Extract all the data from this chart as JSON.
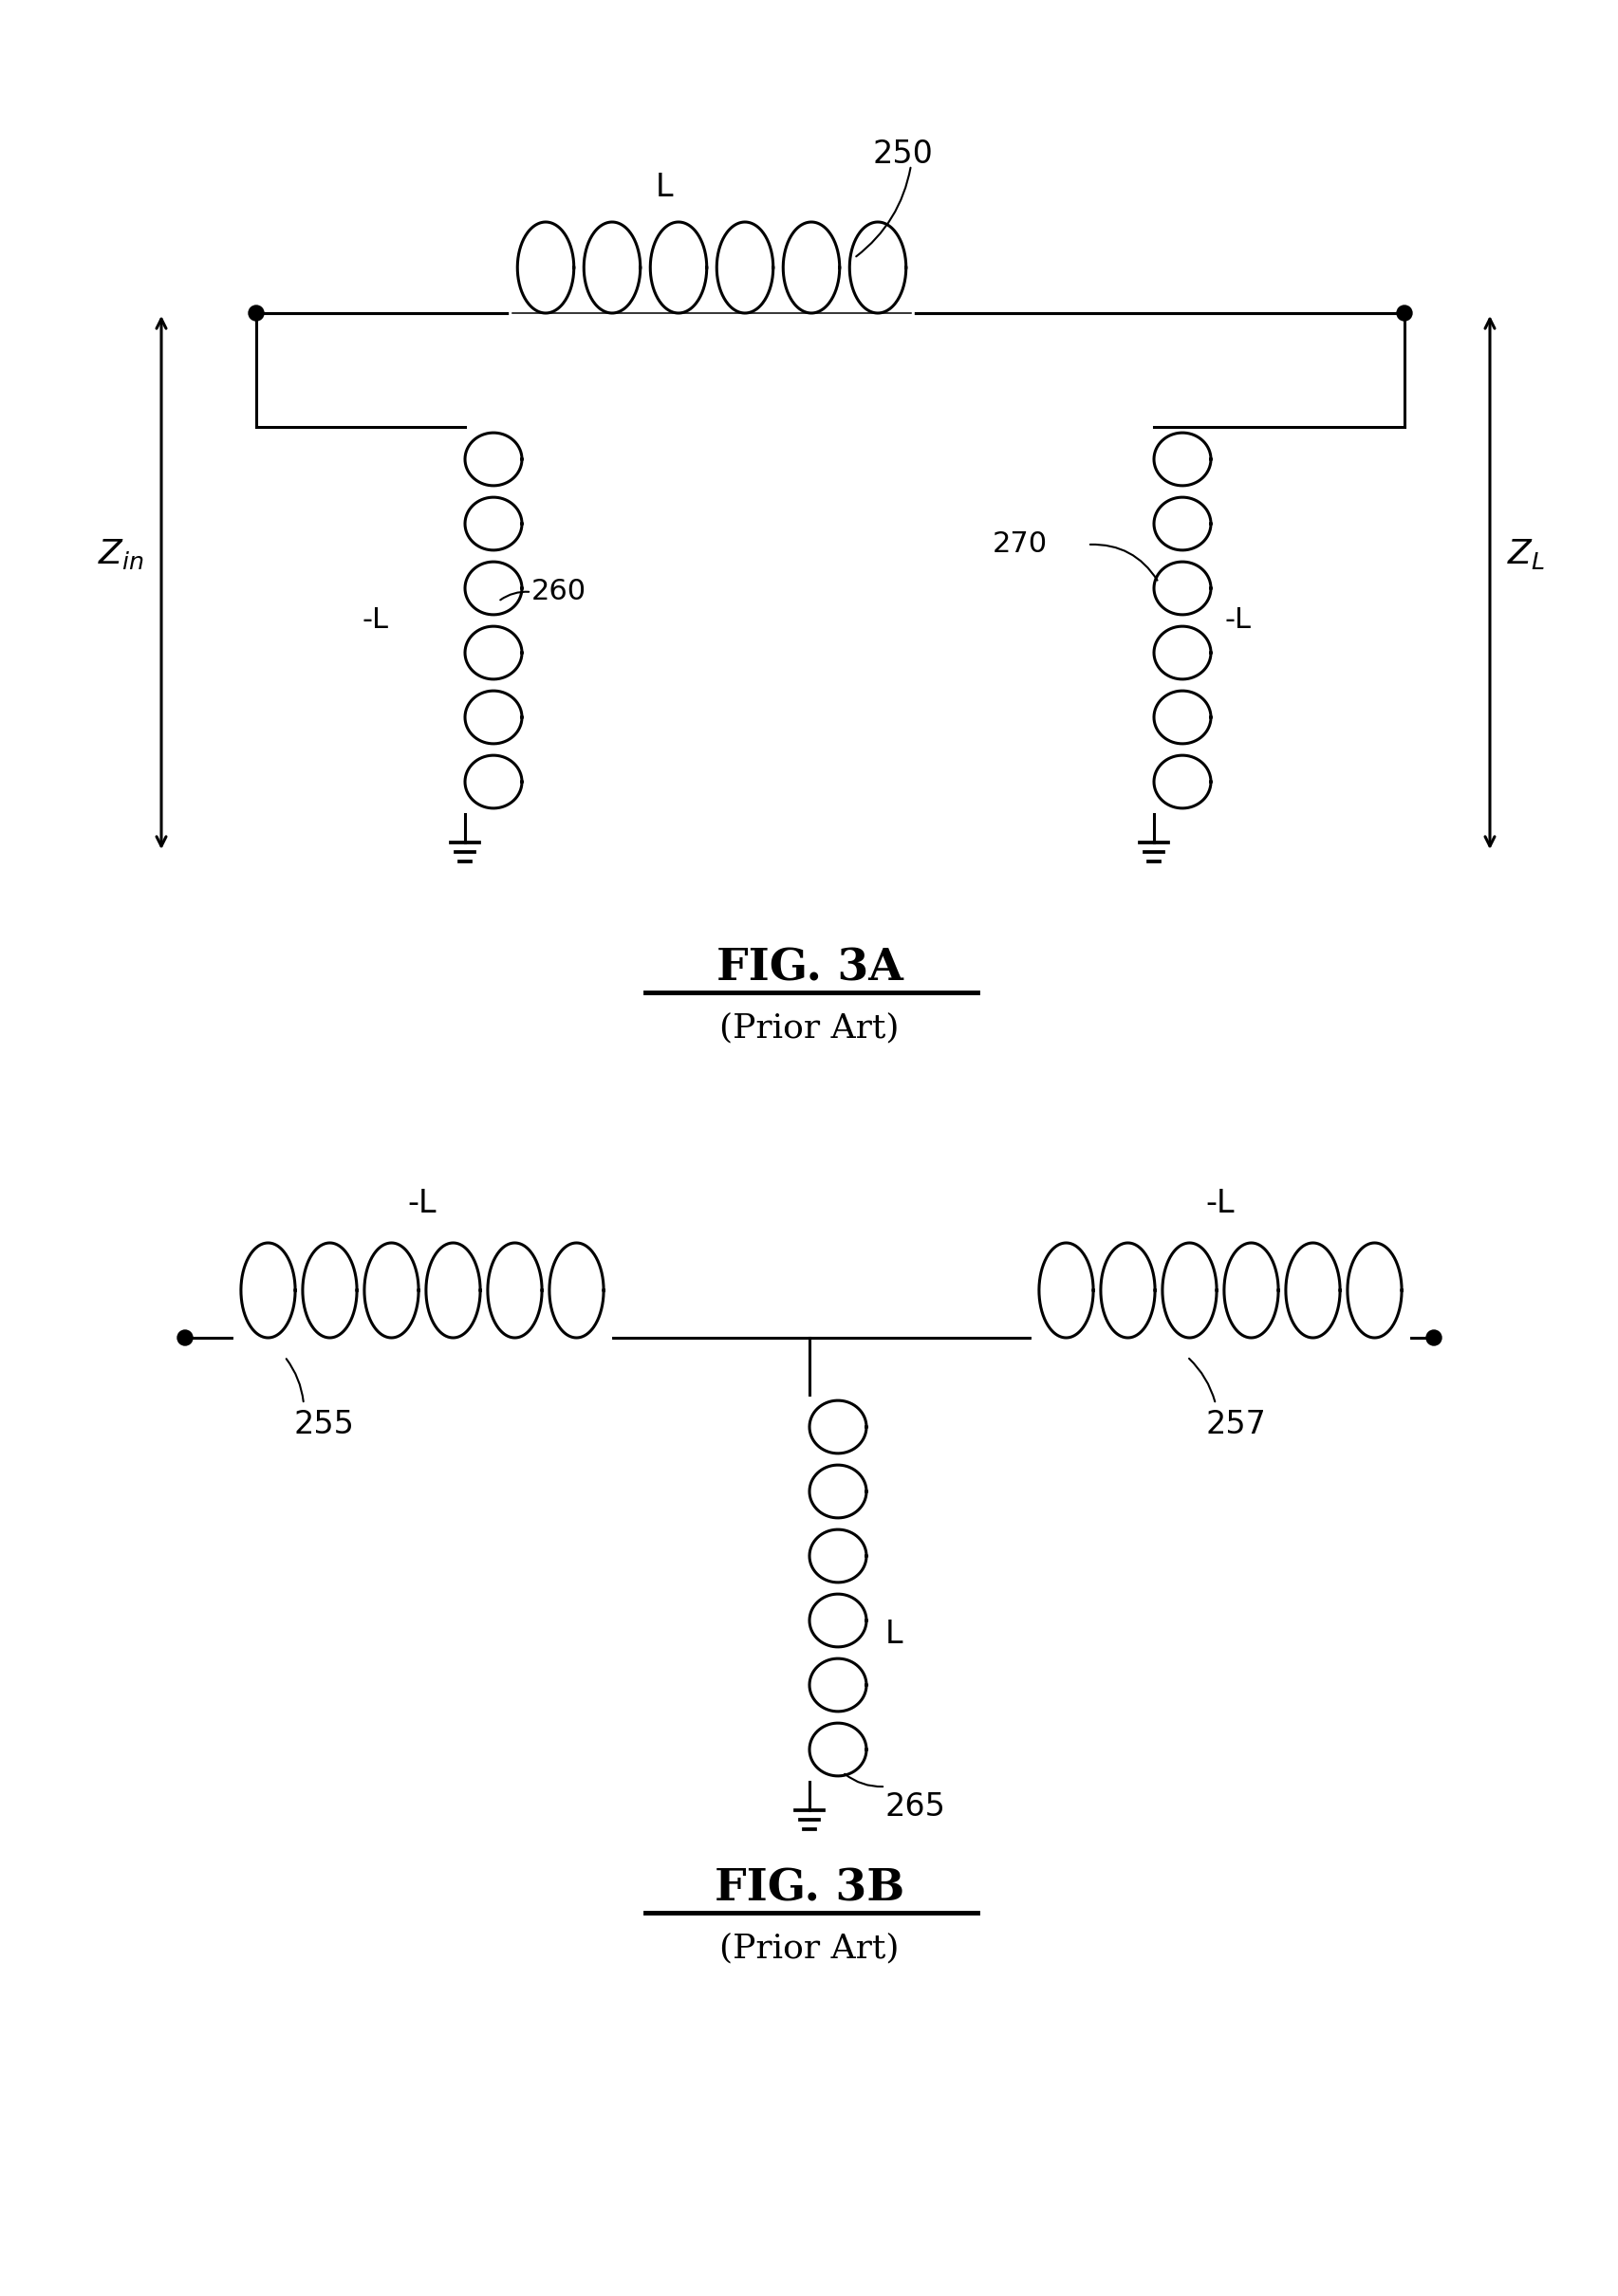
{
  "fig_width": 17.06,
  "fig_height": 24.2,
  "bg_color": "#ffffff",
  "line_color": "#000000",
  "line_width": 2.2,
  "fig3a": {
    "title": "FIG. 3A",
    "subtitle": "(Prior Art)"
  },
  "fig3b": {
    "title": "FIG. 3B",
    "subtitle": "(Prior Art)"
  }
}
